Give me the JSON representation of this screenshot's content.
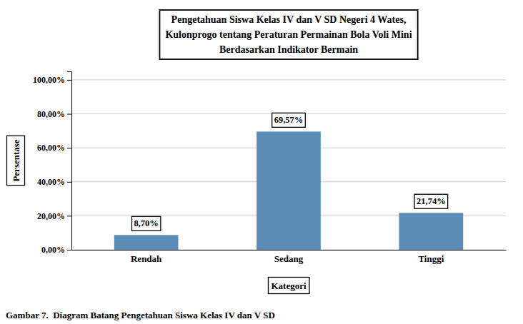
{
  "chart_data": {
    "type": "bar",
    "title": [
      "Pengetahuan Siswa Kelas IV dan V SD Negeri 4 Wates,",
      "Kulonprogo tentang Peraturan Permainan Bola Voli Mini",
      "Berdasarkan Indikator Bermain"
    ],
    "x_label": "Kategori",
    "y_label": "Persentase",
    "caption": "Gambar 7.  Diagram Batang Pengetahuan Siswa Kelas IV dan V SD",
    "categories": [
      "Rendah",
      "Sedang",
      "Tinggi"
    ],
    "values": [
      8.7,
      69.57,
      21.74
    ],
    "value_labels": [
      "8,70%",
      "69,57%",
      "21,74%"
    ],
    "data_labels": true,
    "color": "#5B8DB8",
    "ylim": [
      0,
      105
    ],
    "yticks": [
      {
        "value": 0,
        "label": "0,00%"
      },
      {
        "value": 20,
        "label": "20,00%"
      },
      {
        "value": 40,
        "label": "40,00%"
      },
      {
        "value": 60,
        "label": "60,00%"
      },
      {
        "value": 80,
        "label": "80,00%"
      },
      {
        "value": 100,
        "label": "100,00%"
      }
    ],
    "grid": true
  }
}
